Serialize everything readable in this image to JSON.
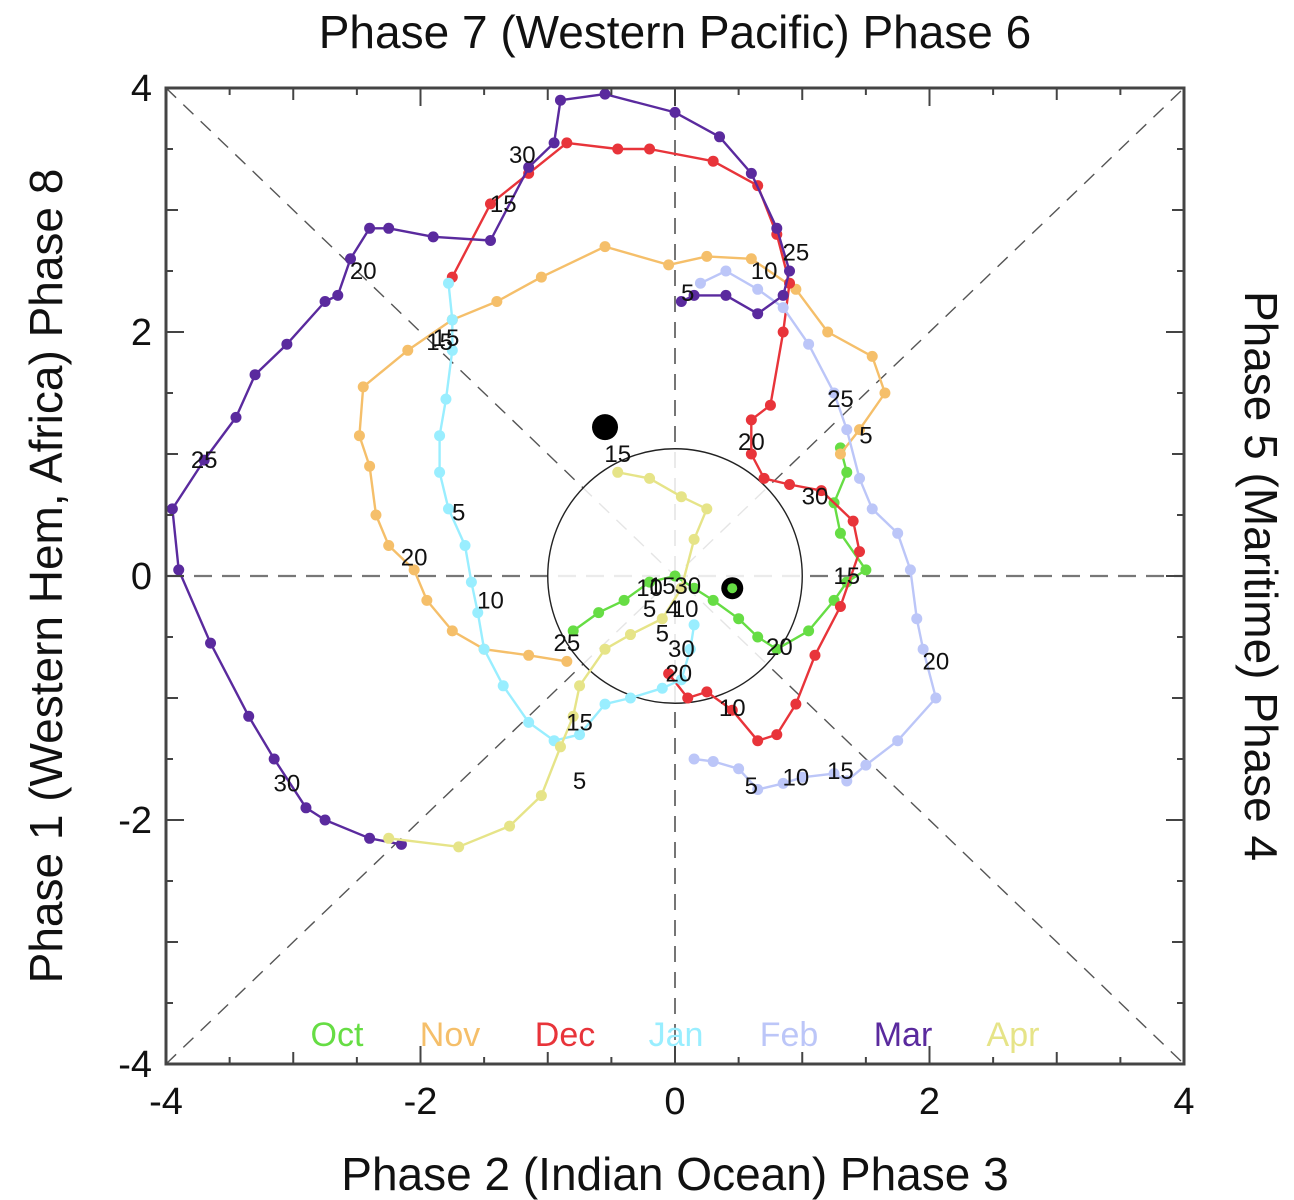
{
  "chart_data": {
    "type": "line",
    "titles": {
      "top": "Phase 7 (Western Pacific) Phase 6",
      "bottom": "Phase 2 (Indian Ocean) Phase 3",
      "left": "Phase 1 (Western Hem, Africa) Phase 8",
      "right": "Phase 5 (Maritime) Phase 4"
    },
    "xlim": [
      -4,
      4
    ],
    "ylim": [
      -4,
      4
    ],
    "x_ticks": [
      -4,
      -2,
      0,
      2,
      4
    ],
    "y_ticks": [
      -4,
      -2,
      0,
      2,
      4
    ],
    "x_tick_labels": [
      "-4",
      "-2",
      "0",
      "2",
      "4"
    ],
    "y_tick_labels": [
      "-4",
      "-2",
      "0",
      "2",
      "4"
    ],
    "reference_circle_radius": 1,
    "grid": "dashed diagonals and axes",
    "legend_position": "bottom-center",
    "series": [
      {
        "name": "Oct",
        "color": "#66dd44",
        "points": [
          [
            -0.8,
            -0.45
          ],
          [
            -0.6,
            -0.3
          ],
          [
            -0.4,
            -0.2
          ],
          [
            -0.2,
            -0.05
          ],
          [
            0,
            0
          ],
          [
            0.15,
            -0.1
          ],
          [
            0.3,
            -0.2
          ],
          [
            0.5,
            -0.35
          ],
          [
            0.65,
            -0.5
          ],
          [
            0.8,
            -0.6
          ],
          [
            1.05,
            -0.45
          ],
          [
            1.25,
            -0.2
          ],
          [
            1.35,
            -0.05
          ],
          [
            1.5,
            0.05
          ],
          [
            1.3,
            0.35
          ],
          [
            1.25,
            0.6
          ],
          [
            1.35,
            0.85
          ],
          [
            1.3,
            1.05
          ]
        ],
        "day_labels": [
          {
            "text": "15",
            "x": 1.35,
            "y": 0
          },
          {
            "text": "20",
            "x": 0.82,
            "y": -0.58
          }
        ]
      },
      {
        "name": "Nov",
        "color": "#f5bf6a",
        "points": [
          [
            -0.85,
            -0.7
          ],
          [
            -1.15,
            -0.65
          ],
          [
            -1.5,
            -0.6
          ],
          [
            -1.75,
            -0.45
          ],
          [
            -1.95,
            -0.2
          ],
          [
            -2.05,
            0.05
          ],
          [
            -2.25,
            0.25
          ],
          [
            -2.35,
            0.5
          ],
          [
            -2.4,
            0.9
          ],
          [
            -2.48,
            1.15
          ],
          [
            -2.45,
            1.55
          ],
          [
            -2.1,
            1.85
          ],
          [
            -1.75,
            2.1
          ],
          [
            -1.4,
            2.25
          ],
          [
            -1.05,
            2.45
          ],
          [
            -0.55,
            2.7
          ],
          [
            -0.05,
            2.55
          ],
          [
            0.25,
            2.62
          ],
          [
            0.6,
            2.6
          ],
          [
            0.95,
            2.35
          ],
          [
            1.2,
            2.0
          ],
          [
            1.55,
            1.8
          ],
          [
            1.65,
            1.5
          ],
          [
            1.45,
            1.2
          ],
          [
            1.3,
            1.0
          ]
        ],
        "day_labels": [
          {
            "text": "20",
            "x": -2.05,
            "y": 0.15
          },
          {
            "text": "15",
            "x": -1.8,
            "y": 1.95
          },
          {
            "text": "10",
            "x": 0.7,
            "y": 2.5
          },
          {
            "text": "5",
            "x": 1.5,
            "y": 1.15
          }
        ]
      },
      {
        "name": "Dec",
        "color": "#e8343a",
        "points": [
          [
            -0.05,
            -0.8
          ],
          [
            0.1,
            -1.0
          ],
          [
            0.25,
            -0.95
          ],
          [
            0.45,
            -1.1
          ],
          [
            0.65,
            -1.35
          ],
          [
            0.8,
            -1.3
          ],
          [
            0.95,
            -1.05
          ],
          [
            1.1,
            -0.65
          ],
          [
            1.3,
            -0.25
          ],
          [
            1.45,
            0.2
          ],
          [
            1.4,
            0.45
          ],
          [
            1.15,
            0.7
          ],
          [
            0.9,
            0.75
          ],
          [
            0.7,
            0.8
          ],
          [
            0.6,
            1.0
          ],
          [
            0.6,
            1.28
          ],
          [
            0.75,
            1.4
          ],
          [
            0.85,
            2.0
          ],
          [
            0.9,
            2.4
          ],
          [
            0.8,
            2.8
          ],
          [
            0.65,
            3.2
          ],
          [
            0.3,
            3.4
          ],
          [
            -0.2,
            3.5
          ],
          [
            -0.45,
            3.5
          ],
          [
            -0.85,
            3.55
          ],
          [
            -1.15,
            3.3
          ],
          [
            -1.45,
            3.05
          ],
          [
            -1.75,
            2.45
          ]
        ],
        "day_labels": [
          {
            "text": "10",
            "x": 0.45,
            "y": -1.08
          },
          {
            "text": "30",
            "x": 1.1,
            "y": 0.65
          },
          {
            "text": "20",
            "x": 0.6,
            "y": 1.1
          },
          {
            "text": "15",
            "x": -1.35,
            "y": 3.05
          },
          {
            "text": "30",
            "x": -1.2,
            "y": 3.45
          },
          {
            "text": "5",
            "x": -0.1,
            "y": -0.47
          },
          {
            "text": "30",
            "x": 0.05,
            "y": -0.6
          },
          {
            "text": "20",
            "x": 0.03,
            "y": -0.8
          },
          {
            "text": "10",
            "x": -0.2,
            "y": -0.1
          }
        ]
      },
      {
        "name": "Jan",
        "color": "#99eeff",
        "points": [
          [
            0.15,
            -0.4
          ],
          [
            0.12,
            -0.6
          ],
          [
            0.05,
            -0.85
          ],
          [
            -0.1,
            -0.92
          ],
          [
            -0.35,
            -1.0
          ],
          [
            -0.55,
            -1.05
          ],
          [
            -0.75,
            -1.3
          ],
          [
            -0.95,
            -1.35
          ],
          [
            -1.15,
            -1.2
          ],
          [
            -1.35,
            -0.9
          ],
          [
            -1.5,
            -0.6
          ],
          [
            -1.55,
            -0.3
          ],
          [
            -1.6,
            -0.05
          ],
          [
            -1.65,
            0.25
          ],
          [
            -1.78,
            0.55
          ],
          [
            -1.85,
            0.85
          ],
          [
            -1.85,
            1.15
          ],
          [
            -1.8,
            1.45
          ],
          [
            -1.75,
            1.85
          ],
          [
            -1.75,
            2.1
          ],
          [
            -1.78,
            2.4
          ]
        ],
        "day_labels": [
          {
            "text": "10",
            "x": -1.45,
            "y": -0.2
          },
          {
            "text": "5",
            "x": -1.7,
            "y": 0.52
          },
          {
            "text": "15",
            "x": -1.85,
            "y": 1.92
          }
        ]
      },
      {
        "name": "Feb",
        "color": "#bcc6f8",
        "points": [
          [
            0.15,
            -1.5
          ],
          [
            0.3,
            -1.52
          ],
          [
            0.5,
            -1.58
          ],
          [
            0.65,
            -1.75
          ],
          [
            0.85,
            -1.7
          ],
          [
            1.0,
            -1.65
          ],
          [
            1.25,
            -1.62
          ],
          [
            1.35,
            -1.68
          ],
          [
            1.5,
            -1.55
          ],
          [
            1.75,
            -1.35
          ],
          [
            2.05,
            -1.0
          ],
          [
            1.95,
            -0.6
          ],
          [
            1.9,
            -0.35
          ],
          [
            1.85,
            0.05
          ],
          [
            1.75,
            0.35
          ],
          [
            1.55,
            0.55
          ],
          [
            1.45,
            0.8
          ],
          [
            1.35,
            1.2
          ],
          [
            1.25,
            1.5
          ],
          [
            1.05,
            1.9
          ],
          [
            0.85,
            2.2
          ],
          [
            0.65,
            2.35
          ],
          [
            0.4,
            2.5
          ],
          [
            0.2,
            2.4
          ]
        ],
        "day_labels": [
          {
            "text": "15",
            "x": 1.3,
            "y": -1.6
          },
          {
            "text": "10",
            "x": 0.95,
            "y": -1.65
          },
          {
            "text": "5",
            "x": 0.6,
            "y": -1.72
          },
          {
            "text": "20",
            "x": 2.05,
            "y": -0.7
          },
          {
            "text": "25",
            "x": 1.3,
            "y": 1.45
          }
        ]
      },
      {
        "name": "Mar",
        "color": "#5a2a9e",
        "points": [
          [
            0.05,
            2.25
          ],
          [
            0.15,
            2.3
          ],
          [
            0.4,
            2.3
          ],
          [
            0.65,
            2.15
          ],
          [
            0.85,
            2.3
          ],
          [
            0.9,
            2.5
          ],
          [
            0.8,
            2.85
          ],
          [
            0.6,
            3.3
          ],
          [
            0.35,
            3.6
          ],
          [
            0,
            3.8
          ],
          [
            -0.55,
            3.95
          ],
          [
            -0.9,
            3.9
          ],
          [
            -0.95,
            3.55
          ],
          [
            -1.15,
            3.35
          ],
          [
            -1.45,
            2.75
          ],
          [
            -1.9,
            2.78
          ],
          [
            -2.25,
            2.85
          ],
          [
            -2.4,
            2.85
          ],
          [
            -2.55,
            2.6
          ],
          [
            -2.65,
            2.3
          ],
          [
            -2.75,
            2.25
          ],
          [
            -3.05,
            1.9
          ],
          [
            -3.3,
            1.65
          ],
          [
            -3.45,
            1.3
          ],
          [
            -3.7,
            0.95
          ],
          [
            -3.95,
            0.55
          ],
          [
            -3.9,
            0.05
          ],
          [
            -3.65,
            -0.55
          ],
          [
            -3.35,
            -1.15
          ],
          [
            -3.15,
            -1.5
          ],
          [
            -2.9,
            -1.9
          ],
          [
            -2.75,
            -2.0
          ],
          [
            -2.4,
            -2.15
          ],
          [
            -2.15,
            -2.2
          ]
        ],
        "day_labels": [
          {
            "text": "5",
            "x": 0.1,
            "y": 2.32
          },
          {
            "text": "25",
            "x": 0.95,
            "y": 2.65
          },
          {
            "text": "20",
            "x": -2.45,
            "y": 2.5
          },
          {
            "text": "25",
            "x": -3.7,
            "y": 0.95
          },
          {
            "text": "30",
            "x": -3.05,
            "y": -1.7
          }
        ]
      },
      {
        "name": "Apr",
        "color": "#e6e488",
        "points": [
          [
            -2.25,
            -2.15
          ],
          [
            -1.7,
            -2.22
          ],
          [
            -1.3,
            -2.05
          ],
          [
            -1.05,
            -1.8
          ],
          [
            -0.9,
            -1.4
          ],
          [
            -0.8,
            -1.15
          ],
          [
            -0.75,
            -0.9
          ],
          [
            -0.55,
            -0.6
          ],
          [
            -0.35,
            -0.48
          ],
          [
            -0.1,
            -0.35
          ],
          [
            0.05,
            -0.1
          ],
          [
            0.15,
            0.3
          ],
          [
            0.25,
            0.55
          ],
          [
            0.05,
            0.65
          ],
          [
            -0.2,
            0.8
          ],
          [
            -0.45,
            0.85
          ]
        ],
        "day_labels": [
          {
            "text": "5",
            "x": -0.75,
            "y": -1.68
          },
          {
            "text": "15",
            "x": -0.75,
            "y": -1.2
          },
          {
            "text": "15",
            "x": -0.45,
            "y": 1.0
          },
          {
            "text": "25",
            "x": -0.85,
            "y": -0.55
          }
        ]
      }
    ],
    "center_labels": [
      {
        "text": "15",
        "x": -0.1,
        "y": -0.08
      },
      {
        "text": "30",
        "x": 0.1,
        "y": -0.08
      },
      {
        "text": "5",
        "x": -0.2,
        "y": -0.27
      },
      {
        "text": "4",
        "x": -0.02,
        "y": -0.27
      },
      {
        "text": "10",
        "x": 0.08,
        "y": -0.27
      }
    ],
    "markers": [
      {
        "label": "start",
        "x": -0.55,
        "y": 1.22,
        "style": "filled"
      },
      {
        "label": "end",
        "x": 0.45,
        "y": -0.1,
        "style": "ringed"
      }
    ]
  }
}
